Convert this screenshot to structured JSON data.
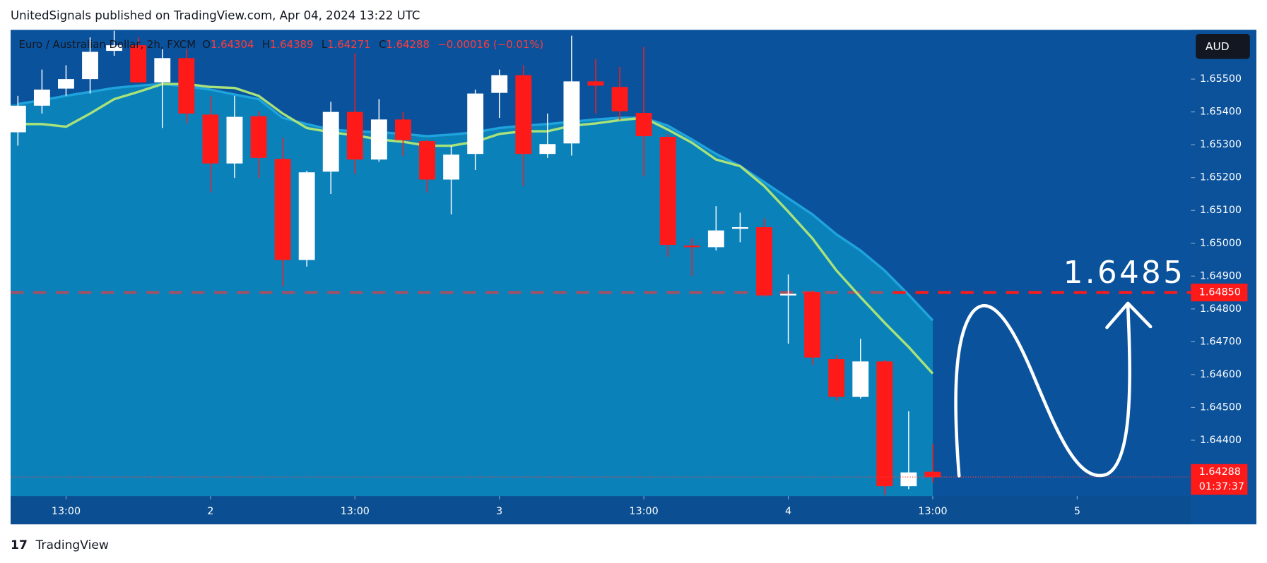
{
  "header": {
    "publisher": "UnitedSignals published on TradingView.com, Apr 04, 2024 13:22 UTC",
    "footer": "TradingView"
  },
  "chart_data": {
    "type": "candlestick",
    "symbol": "Euro / Australian Dollar, 2h, FXCM",
    "ohlc_labels": [
      "O",
      "H",
      "L",
      "C"
    ],
    "change": "−0.00016 (−0.01%)",
    "currency": "AUD",
    "countdown": "01:37:37",
    "up_color": "#ffffff",
    "down_color": "#ff1a1a",
    "open": [
      1.65338,
      1.65419,
      1.65471,
      1.655,
      1.65586,
      1.65603,
      1.6549,
      1.65564,
      1.65392,
      1.65243,
      1.65387,
      1.65257,
      1.64949,
      1.65218,
      1.654,
      1.65255,
      1.65377,
      1.65311,
      1.65194,
      1.65272,
      1.65458,
      1.65512,
      1.65272,
      1.65304,
      1.65493,
      1.65476,
      1.65397,
      1.65324,
      1.64993,
      1.64988,
      1.65047,
      1.65049,
      1.64841,
      1.64851,
      1.64647,
      1.64532,
      1.6464,
      1.6426,
      1.64304
    ],
    "high": [
      1.65449,
      1.65529,
      1.65542,
      1.65627,
      1.65647,
      1.65627,
      1.65591,
      1.65591,
      1.65449,
      1.65449,
      1.65402,
      1.65321,
      1.65221,
      1.65431,
      1.65578,
      1.65439,
      1.654,
      1.65316,
      1.65297,
      1.65468,
      1.65529,
      1.65542,
      1.65395,
      1.65632,
      1.65561,
      1.65537,
      1.65598,
      1.65333,
      1.65015,
      1.65113,
      1.65093,
      1.65076,
      1.64905,
      1.64856,
      1.6466,
      1.64709,
      1.64645,
      1.64488,
      1.64389
    ],
    "low": [
      1.65297,
      1.65395,
      1.65449,
      1.65456,
      1.65571,
      1.65488,
      1.65351,
      1.65365,
      1.65155,
      1.65199,
      1.65199,
      1.64868,
      1.64929,
      1.6515,
      1.65211,
      1.65248,
      1.65265,
      1.65155,
      1.65088,
      1.65223,
      1.65382,
      1.65174,
      1.6526,
      1.65267,
      1.65395,
      1.65375,
      1.65204,
      1.64959,
      1.649,
      1.64978,
      1.65003,
      1.64836,
      1.64694,
      1.6463,
      1.6452,
      1.64527,
      1.64233,
      1.64251,
      1.64271
    ],
    "close": [
      1.65419,
      1.65468,
      1.655,
      1.65583,
      1.65603,
      1.6549,
      1.65564,
      1.65395,
      1.65243,
      1.65385,
      1.6526,
      1.64949,
      1.65216,
      1.654,
      1.65255,
      1.65377,
      1.65314,
      1.65194,
      1.6527,
      1.65456,
      1.65512,
      1.65272,
      1.65302,
      1.65493,
      1.6548,
      1.65402,
      1.65326,
      1.64995,
      1.64988,
      1.65039,
      1.65049,
      1.64841,
      1.64846,
      1.64652,
      1.64532,
      1.6464,
      1.6426,
      1.64302,
      1.64288
    ],
    "series": [
      {
        "color": "#1fa3dc",
        "values": [
          1.65424,
          1.65436,
          1.65449,
          1.65461,
          1.65473,
          1.6548,
          1.65485,
          1.65478,
          1.65468,
          1.65453,
          1.65439,
          1.65382,
          1.65363,
          1.65346,
          1.65341,
          1.65338,
          1.65333,
          1.65326,
          1.65331,
          1.65338,
          1.65351,
          1.65358,
          1.65363,
          1.6537,
          1.65377,
          1.65382,
          1.65382,
          1.65358,
          1.65316,
          1.65272,
          1.65235,
          1.65186,
          1.65137,
          1.65088,
          1.65027,
          1.64978,
          1.64917,
          1.64843,
          1.64765
        ]
      },
      {
        "color": "#a8e27a",
        "values": [
          1.65363,
          1.65363,
          1.65355,
          1.65395,
          1.65439,
          1.65461,
          1.65485,
          1.65485,
          1.65476,
          1.65473,
          1.65449,
          1.65395,
          1.65351,
          1.65338,
          1.65329,
          1.65316,
          1.65309,
          1.65297,
          1.65297,
          1.65309,
          1.65333,
          1.65341,
          1.65341,
          1.65358,
          1.65365,
          1.65375,
          1.65382,
          1.65346,
          1.65306,
          1.65255,
          1.65235,
          1.65174,
          1.65096,
          1.65015,
          1.64917,
          1.64836,
          1.64758,
          1.64684,
          1.64603
        ]
      }
    ],
    "level": {
      "value": 1.6485,
      "label": "1.64850"
    },
    "ylim": [
      1.6423,
      1.6565
    ],
    "yticks": [
      {
        "value": 1.655,
        "label": "1.65500"
      },
      {
        "value": 1.654,
        "label": "1.65400"
      },
      {
        "value": 1.653,
        "label": "1.65300"
      },
      {
        "value": 1.652,
        "label": "1.65200"
      },
      {
        "value": 1.651,
        "label": "1.65100"
      },
      {
        "value": 1.65,
        "label": "1.65000"
      },
      {
        "value": 1.649,
        "label": "1.64900"
      },
      {
        "value": 1.648,
        "label": "1.64800"
      },
      {
        "value": 1.647,
        "label": "1.64700"
      },
      {
        "value": 1.646,
        "label": "1.64600"
      },
      {
        "value": 1.645,
        "label": "1.64500"
      },
      {
        "value": 1.644,
        "label": "1.64400"
      }
    ],
    "xticks": [
      {
        "value": 2,
        "label": "13:00"
      },
      {
        "value": 8,
        "label": "2"
      },
      {
        "value": 14,
        "label": "13:00"
      },
      {
        "value": 20,
        "label": "3"
      },
      {
        "value": 26,
        "label": "13:00"
      },
      {
        "value": 32,
        "label": "4"
      },
      {
        "value": 38,
        "label": "13:00"
      },
      {
        "value": 44,
        "label": "5"
      }
    ]
  }
}
